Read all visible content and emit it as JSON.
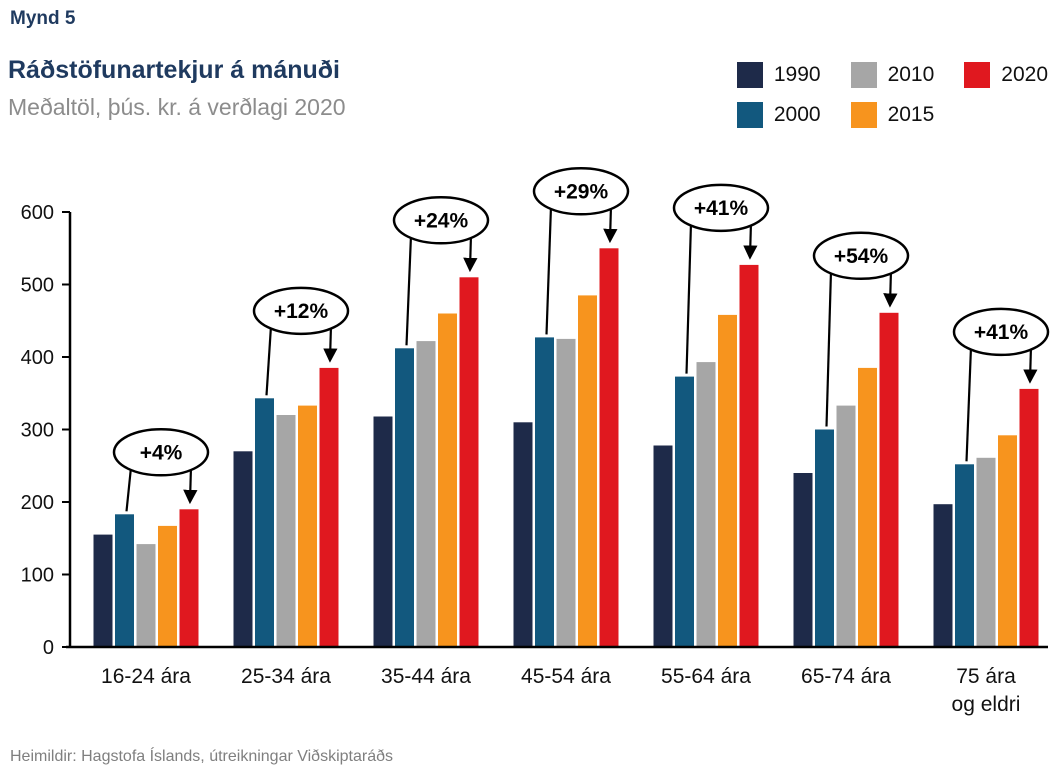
{
  "figure_label": "Mynd 5",
  "footer": "Heimildir: Hagstofa Íslands, útreikningar Viðskiptaráðs",
  "colors": {
    "title_navy": "#1f3a5f",
    "subtitle_gray": "#8c8c8c",
    "footer_gray": "#7f7f7f",
    "axis_black": "#000000",
    "annotation_stroke": "#000000",
    "annotation_fill": "#ffffff"
  },
  "chart_data": {
    "type": "bar",
    "title": "Ráðstöfunartekjur á mánuði",
    "subtitle": "Meðaltöl, þús. kr. á verðlagi 2020",
    "unit": "þús. kr. á verðlagi 2020",
    "categories": [
      "16-24 ára",
      "25-34 ára",
      "35-44 ára",
      "45-54 ára",
      "55-64 ára",
      "65-74 ára",
      "75 ára\nog eldri"
    ],
    "series": [
      {
        "name": "1990",
        "color": "#1e2a49",
        "values": [
          155,
          270,
          318,
          310,
          278,
          240,
          197
        ]
      },
      {
        "name": "2000",
        "color": "#12587e",
        "values": [
          183,
          343,
          412,
          427,
          373,
          300,
          252
        ]
      },
      {
        "name": "2010",
        "color": "#a6a6a6",
        "values": [
          142,
          320,
          422,
          425,
          393,
          333,
          261
        ]
      },
      {
        "name": "2015",
        "color": "#f7941e",
        "values": [
          167,
          333,
          460,
          485,
          458,
          385,
          292
        ]
      },
      {
        "name": "2020",
        "color": "#e0181f",
        "values": [
          190,
          385,
          510,
          550,
          527,
          461,
          356
        ]
      }
    ],
    "ylim": [
      0,
      600
    ],
    "yticks": [
      0,
      100,
      200,
      300,
      400,
      500,
      600
    ],
    "grid": false,
    "legend_position": "top-right",
    "annotations": [
      {
        "label": "+4%",
        "category_index": 0,
        "from_series": "2000",
        "to_series": "2020"
      },
      {
        "label": "+12%",
        "category_index": 1,
        "from_series": "2000",
        "to_series": "2020"
      },
      {
        "label": "+24%",
        "category_index": 2,
        "from_series": "2000",
        "to_series": "2020"
      },
      {
        "label": "+29%",
        "category_index": 3,
        "from_series": "2000",
        "to_series": "2020"
      },
      {
        "label": "+41%",
        "category_index": 4,
        "from_series": "2000",
        "to_series": "2020"
      },
      {
        "label": "+54%",
        "category_index": 5,
        "from_series": "2000",
        "to_series": "2020"
      },
      {
        "label": "+41%",
        "category_index": 6,
        "from_series": "2000",
        "to_series": "2020"
      }
    ]
  }
}
